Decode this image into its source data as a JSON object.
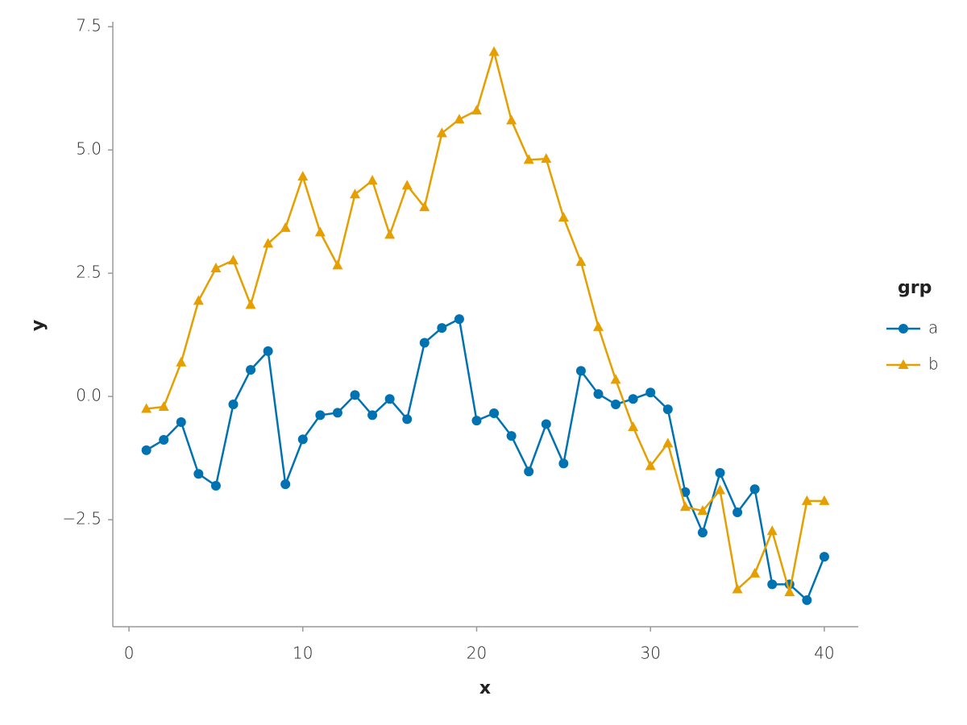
{
  "chart_data": {
    "type": "line",
    "x_label": "x",
    "y_label": "y",
    "legend_title": "grp",
    "legend": "right",
    "x": [
      1,
      2,
      3,
      4,
      5,
      6,
      7,
      8,
      9,
      10,
      11,
      12,
      13,
      14,
      15,
      16,
      17,
      18,
      19,
      20,
      21,
      22,
      23,
      24,
      25,
      26,
      27,
      28,
      29,
      30,
      31,
      32,
      33,
      34,
      35,
      36,
      37,
      38,
      39,
      40
    ],
    "series": [
      {
        "name": "a",
        "color": "#0072B2",
        "marker": "circle",
        "values": [
          -1.09,
          -0.88,
          -0.52,
          -1.57,
          -1.81,
          -0.16,
          0.54,
          0.92,
          -1.78,
          -0.87,
          -0.38,
          -0.33,
          0.03,
          -0.38,
          -0.05,
          -0.46,
          1.09,
          1.39,
          1.57,
          -0.49,
          -0.34,
          -0.8,
          -1.52,
          -0.56,
          -1.36,
          0.52,
          0.05,
          -0.16,
          -0.05,
          0.08,
          -0.26,
          -1.94,
          -2.76,
          -1.55,
          -2.35,
          -1.88,
          -3.81,
          -3.81,
          -4.13,
          -3.25
        ]
      },
      {
        "name": "b",
        "color": "#E69F00",
        "marker": "triangle",
        "values": [
          -0.25,
          -0.21,
          0.69,
          1.94,
          2.6,
          2.76,
          1.86,
          3.1,
          3.42,
          4.46,
          3.33,
          2.66,
          4.1,
          4.38,
          3.28,
          4.28,
          3.84,
          5.34,
          5.62,
          5.8,
          6.99,
          5.6,
          4.8,
          4.82,
          3.63,
          2.73,
          1.41,
          0.34,
          -0.62,
          -1.41,
          -0.95,
          -2.24,
          -2.32,
          -1.9,
          -3.91,
          -3.59,
          -2.73,
          -3.97,
          -2.12,
          -2.12
        ]
      }
    ],
    "xlim": [
      -0.93,
      41.95
    ],
    "xticks": [
      0,
      10,
      20,
      30,
      40
    ],
    "ylim": [
      -4.67,
      7.6
    ],
    "yticks": [
      {
        "value": -2.5,
        "label": "−2.5"
      },
      {
        "value": 0,
        "label": "0.0"
      },
      {
        "value": 2.5,
        "label": "2.5"
      },
      {
        "value": 5,
        "label": "5.0"
      },
      7.5
    ],
    "grid": false
  }
}
